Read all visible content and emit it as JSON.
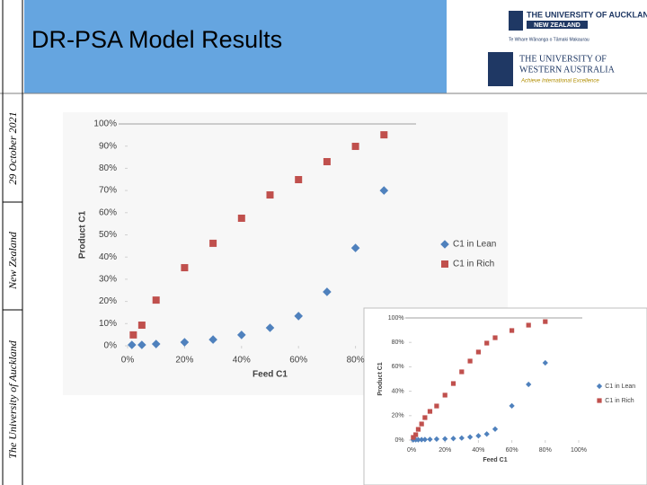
{
  "slide": {
    "title": "DR-PSA Model Results",
    "sidebar": [
      "29 October 2021",
      "New Zealand",
      "The University of Auckland"
    ],
    "logos": [
      "THE UNIVERSITY OF AUCKLAND",
      "NEW ZEALAND",
      "Te Whare Wānanga o Tāmaki Makaurau",
      "THE UNIVERSITY OF",
      "WESTERN AUSTRALIA",
      "Achieve International Excellence"
    ]
  },
  "chart_data": [
    {
      "type": "scatter",
      "x_label": "Feed C1",
      "y_label": "Product C1",
      "xlim": [
        0,
        100
      ],
      "ylim": [
        0,
        100
      ],
      "xticks": [
        {
          "value": 0,
          "label": "0%"
        },
        {
          "value": 20,
          "label": "20%"
        },
        {
          "value": 40,
          "label": "40%"
        },
        {
          "value": 60,
          "label": "60%"
        },
        {
          "value": 80,
          "label": "80%"
        }
      ],
      "yticks": [
        {
          "value": 0,
          "label": "0%"
        },
        {
          "value": 10,
          "label": "10%"
        },
        {
          "value": 20,
          "label": "20%"
        },
        {
          "value": 30,
          "label": "30%"
        },
        {
          "value": 40,
          "label": "40%"
        },
        {
          "value": 50,
          "label": "50%"
        },
        {
          "value": 60,
          "label": "60%"
        },
        {
          "value": 70,
          "label": "70%"
        },
        {
          "value": 80,
          "label": "80%"
        },
        {
          "value": 90,
          "label": "90%"
        },
        {
          "value": 100,
          "label": "100%"
        }
      ],
      "legend": "right",
      "series": [
        {
          "name": "C1 in Lean",
          "color": "#4f81bd",
          "marker": "diamond",
          "x": [
            1.5,
            5,
            10,
            20,
            30,
            40,
            50,
            60,
            70,
            80,
            90
          ],
          "values": [
            0.4,
            0.4,
            0.8,
            1.6,
            2.8,
            4.9,
            8.1,
            13.4,
            24.3,
            44.1,
            70
          ]
        },
        {
          "name": "C1 in Rich",
          "color": "#c0504d",
          "marker": "square",
          "x": [
            2,
            5,
            10,
            20,
            30,
            40,
            50,
            60,
            70,
            80,
            90
          ],
          "values": [
            4.9,
            9.3,
            20.6,
            35.2,
            46.2,
            57.5,
            68,
            74.9,
            83,
            89.9,
            95.1
          ]
        }
      ]
    },
    {
      "type": "scatter",
      "x_label": "Feed C1",
      "y_label": "Product C1",
      "xlim": [
        0,
        100
      ],
      "ylim": [
        0,
        100
      ],
      "xticks": [
        {
          "value": 0,
          "label": "0%"
        },
        {
          "value": 20,
          "label": "20%"
        },
        {
          "value": 40,
          "label": "40%"
        },
        {
          "value": 60,
          "label": "60%"
        },
        {
          "value": 80,
          "label": "80%"
        },
        {
          "value": 100,
          "label": "100%"
        }
      ],
      "yticks": [
        {
          "value": 0,
          "label": "0%"
        },
        {
          "value": 20,
          "label": "20%"
        },
        {
          "value": 40,
          "label": "40%"
        },
        {
          "value": 60,
          "label": "60%"
        },
        {
          "value": 80,
          "label": "80%"
        },
        {
          "value": 100,
          "label": "100%"
        }
      ],
      "legend": "right",
      "series": [
        {
          "name": "C1 in Lean",
          "color": "#4f81bd",
          "marker": "diamond",
          "x": [
            1,
            2.5,
            4,
            6,
            8,
            11,
            15,
            20,
            25,
            30,
            35,
            40,
            45,
            50,
            60,
            70,
            80
          ],
          "values": [
            0.2,
            0.3,
            0.3,
            0.4,
            0.5,
            0.6,
            0.8,
            1,
            1.3,
            1.7,
            2.5,
            3.5,
            5,
            9,
            28,
            45.6,
            63.2
          ]
        },
        {
          "name": "C1 in Rich",
          "color": "#c0504d",
          "marker": "square",
          "x": [
            1,
            2.5,
            4,
            6,
            8,
            11,
            15,
            20,
            25,
            30,
            35,
            40,
            45,
            50,
            60,
            70,
            80
          ],
          "values": [
            2.2,
            4.4,
            8.8,
            13.2,
            18.4,
            23.5,
            27.9,
            36.8,
            46.3,
            55.9,
            64.7,
            72.1,
            79.4,
            83.8,
            89.7,
            94.1,
            97
          ]
        }
      ]
    }
  ]
}
